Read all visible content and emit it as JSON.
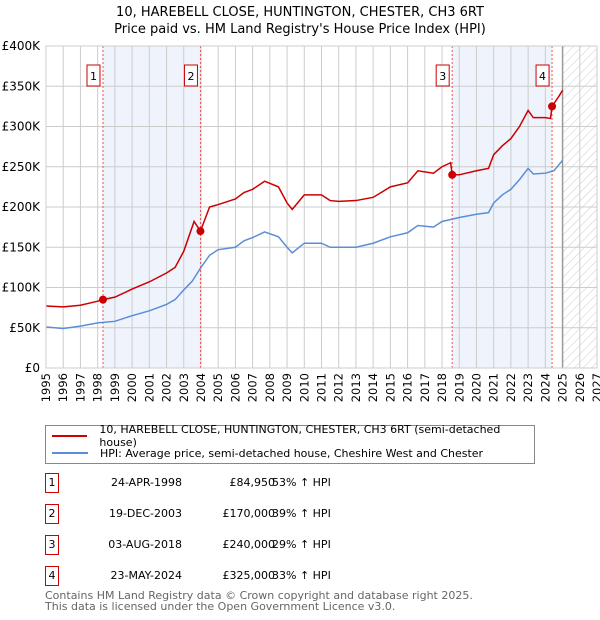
{
  "title": "10, HAREBELL CLOSE, HUNTINGTON, CHESTER, CH3 6RT",
  "subtitle": "Price paid vs. HM Land Registry's House Price Index (HPI)",
  "chart_data": {
    "type": "line",
    "xlim": [
      1995,
      2027
    ],
    "ylim": [
      0,
      400000
    ],
    "x_ticks": [
      "1995",
      "1996",
      "1997",
      "1998",
      "1999",
      "2000",
      "2001",
      "2002",
      "2003",
      "2004",
      "2005",
      "2006",
      "2007",
      "2008",
      "2009",
      "2010",
      "2011",
      "2012",
      "2013",
      "2014",
      "2015",
      "2016",
      "2017",
      "2018",
      "2019",
      "2020",
      "2021",
      "2022",
      "2023",
      "2024",
      "2025",
      "2026",
      "2027"
    ],
    "y_ticks": [
      {
        "v": 0,
        "label": "£0"
      },
      {
        "v": 50000,
        "label": "£50K"
      },
      {
        "v": 100000,
        "label": "£100K"
      },
      {
        "v": 150000,
        "label": "£150K"
      },
      {
        "v": 200000,
        "label": "£200K"
      },
      {
        "v": 250000,
        "label": "£250K"
      },
      {
        "v": 300000,
        "label": "£300K"
      },
      {
        "v": 350000,
        "label": "£350K"
      },
      {
        "v": 400000,
        "label": "£400K"
      }
    ],
    "shaded_ranges": [
      [
        1998.31,
        2003.97
      ],
      [
        2018.59,
        2024.39
      ]
    ],
    "forecast_from": 2025.0,
    "series": [
      {
        "name": "10, HAREBELL CLOSE, HUNTINGTON, CHESTER, CH3 6RT (semi-detached house)",
        "color": "#cc0000",
        "x": [
          1995,
          1996,
          1997,
          1998,
          1998.31,
          1999,
          2000,
          2001,
          2002,
          2002.5,
          2003,
          2003.6,
          2003.97,
          2004.5,
          2005,
          2006,
          2006.5,
          2007,
          2007.7,
          2008.5,
          2009,
          2009.3,
          2010,
          2011,
          2011.5,
          2012,
          2013,
          2014,
          2015,
          2016,
          2016.6,
          2017.5,
          2018,
          2018.5,
          2018.59,
          2019,
          2020,
          2020.7,
          2021,
          2021.5,
          2022,
          2022.5,
          2023,
          2023.3,
          2024,
          2024.3,
          2024.39,
          2024.8,
          2025
        ],
        "y": [
          77000,
          76000,
          78000,
          83000,
          84950,
          88000,
          98000,
          107000,
          118000,
          125000,
          145000,
          182000,
          170000,
          200000,
          203000,
          210000,
          218000,
          222000,
          232000,
          225000,
          205000,
          197000,
          215000,
          215000,
          208000,
          207000,
          208000,
          212000,
          225000,
          230000,
          245000,
          242000,
          250000,
          255000,
          240000,
          240000,
          245000,
          248000,
          265000,
          276000,
          285000,
          300000,
          320000,
          311000,
          311000,
          310000,
          325000,
          338000,
          345000
        ]
      },
      {
        "name": "HPI: Average price, semi-detached house, Cheshire West and Chester",
        "color": "#5b8ed6",
        "x": [
          1995,
          1996,
          1997,
          1998,
          1999,
          2000,
          2001,
          2002,
          2002.5,
          2003,
          2003.5,
          2004,
          2004.5,
          2005,
          2006,
          2006.5,
          2007,
          2007.7,
          2008.5,
          2009,
          2009.3,
          2010,
          2011,
          2011.5,
          2012,
          2013,
          2014,
          2015,
          2016,
          2016.6,
          2017.5,
          2018,
          2019,
          2020,
          2020.7,
          2021,
          2021.5,
          2022,
          2022.5,
          2023,
          2023.3,
          2024,
          2024.5,
          2025
        ],
        "y": [
          51000,
          49000,
          52000,
          56000,
          58000,
          65000,
          71000,
          79000,
          85000,
          97000,
          108000,
          125000,
          140000,
          147000,
          150000,
          158000,
          162000,
          169000,
          163000,
          150000,
          143000,
          155000,
          155000,
          150000,
          150000,
          150000,
          155000,
          163000,
          168000,
          177000,
          175000,
          182000,
          187000,
          191000,
          193000,
          205000,
          215000,
          222000,
          234000,
          248000,
          241000,
          242000,
          245000,
          258000
        ]
      }
    ],
    "sales": [
      {
        "n": "1",
        "x": 1998.31,
        "date": "24-APR-1998",
        "price": "£84,950",
        "value": 84950,
        "hpi": "53% ↑ HPI"
      },
      {
        "n": "2",
        "x": 2003.97,
        "date": "19-DEC-2003",
        "price": "£170,000",
        "value": 170000,
        "hpi": "39% ↑ HPI"
      },
      {
        "n": "3",
        "x": 2018.59,
        "date": "03-AUG-2018",
        "price": "£240,000",
        "value": 240000,
        "hpi": "29% ↑ HPI"
      },
      {
        "n": "4",
        "x": 2024.39,
        "date": "23-MAY-2024",
        "price": "£325,000",
        "value": 325000,
        "hpi": "33% ↑ HPI"
      }
    ]
  },
  "legend": {
    "property": "10, HAREBELL CLOSE, HUNTINGTON, CHESTER, CH3 6RT (semi-detached house)",
    "hpi": "HPI: Average price, semi-detached house, Cheshire West and Chester"
  },
  "footer": {
    "line1": "Contains HM Land Registry data © Crown copyright and database right 2025.",
    "line2": "This data is licensed under the Open Government Licence v3.0."
  }
}
